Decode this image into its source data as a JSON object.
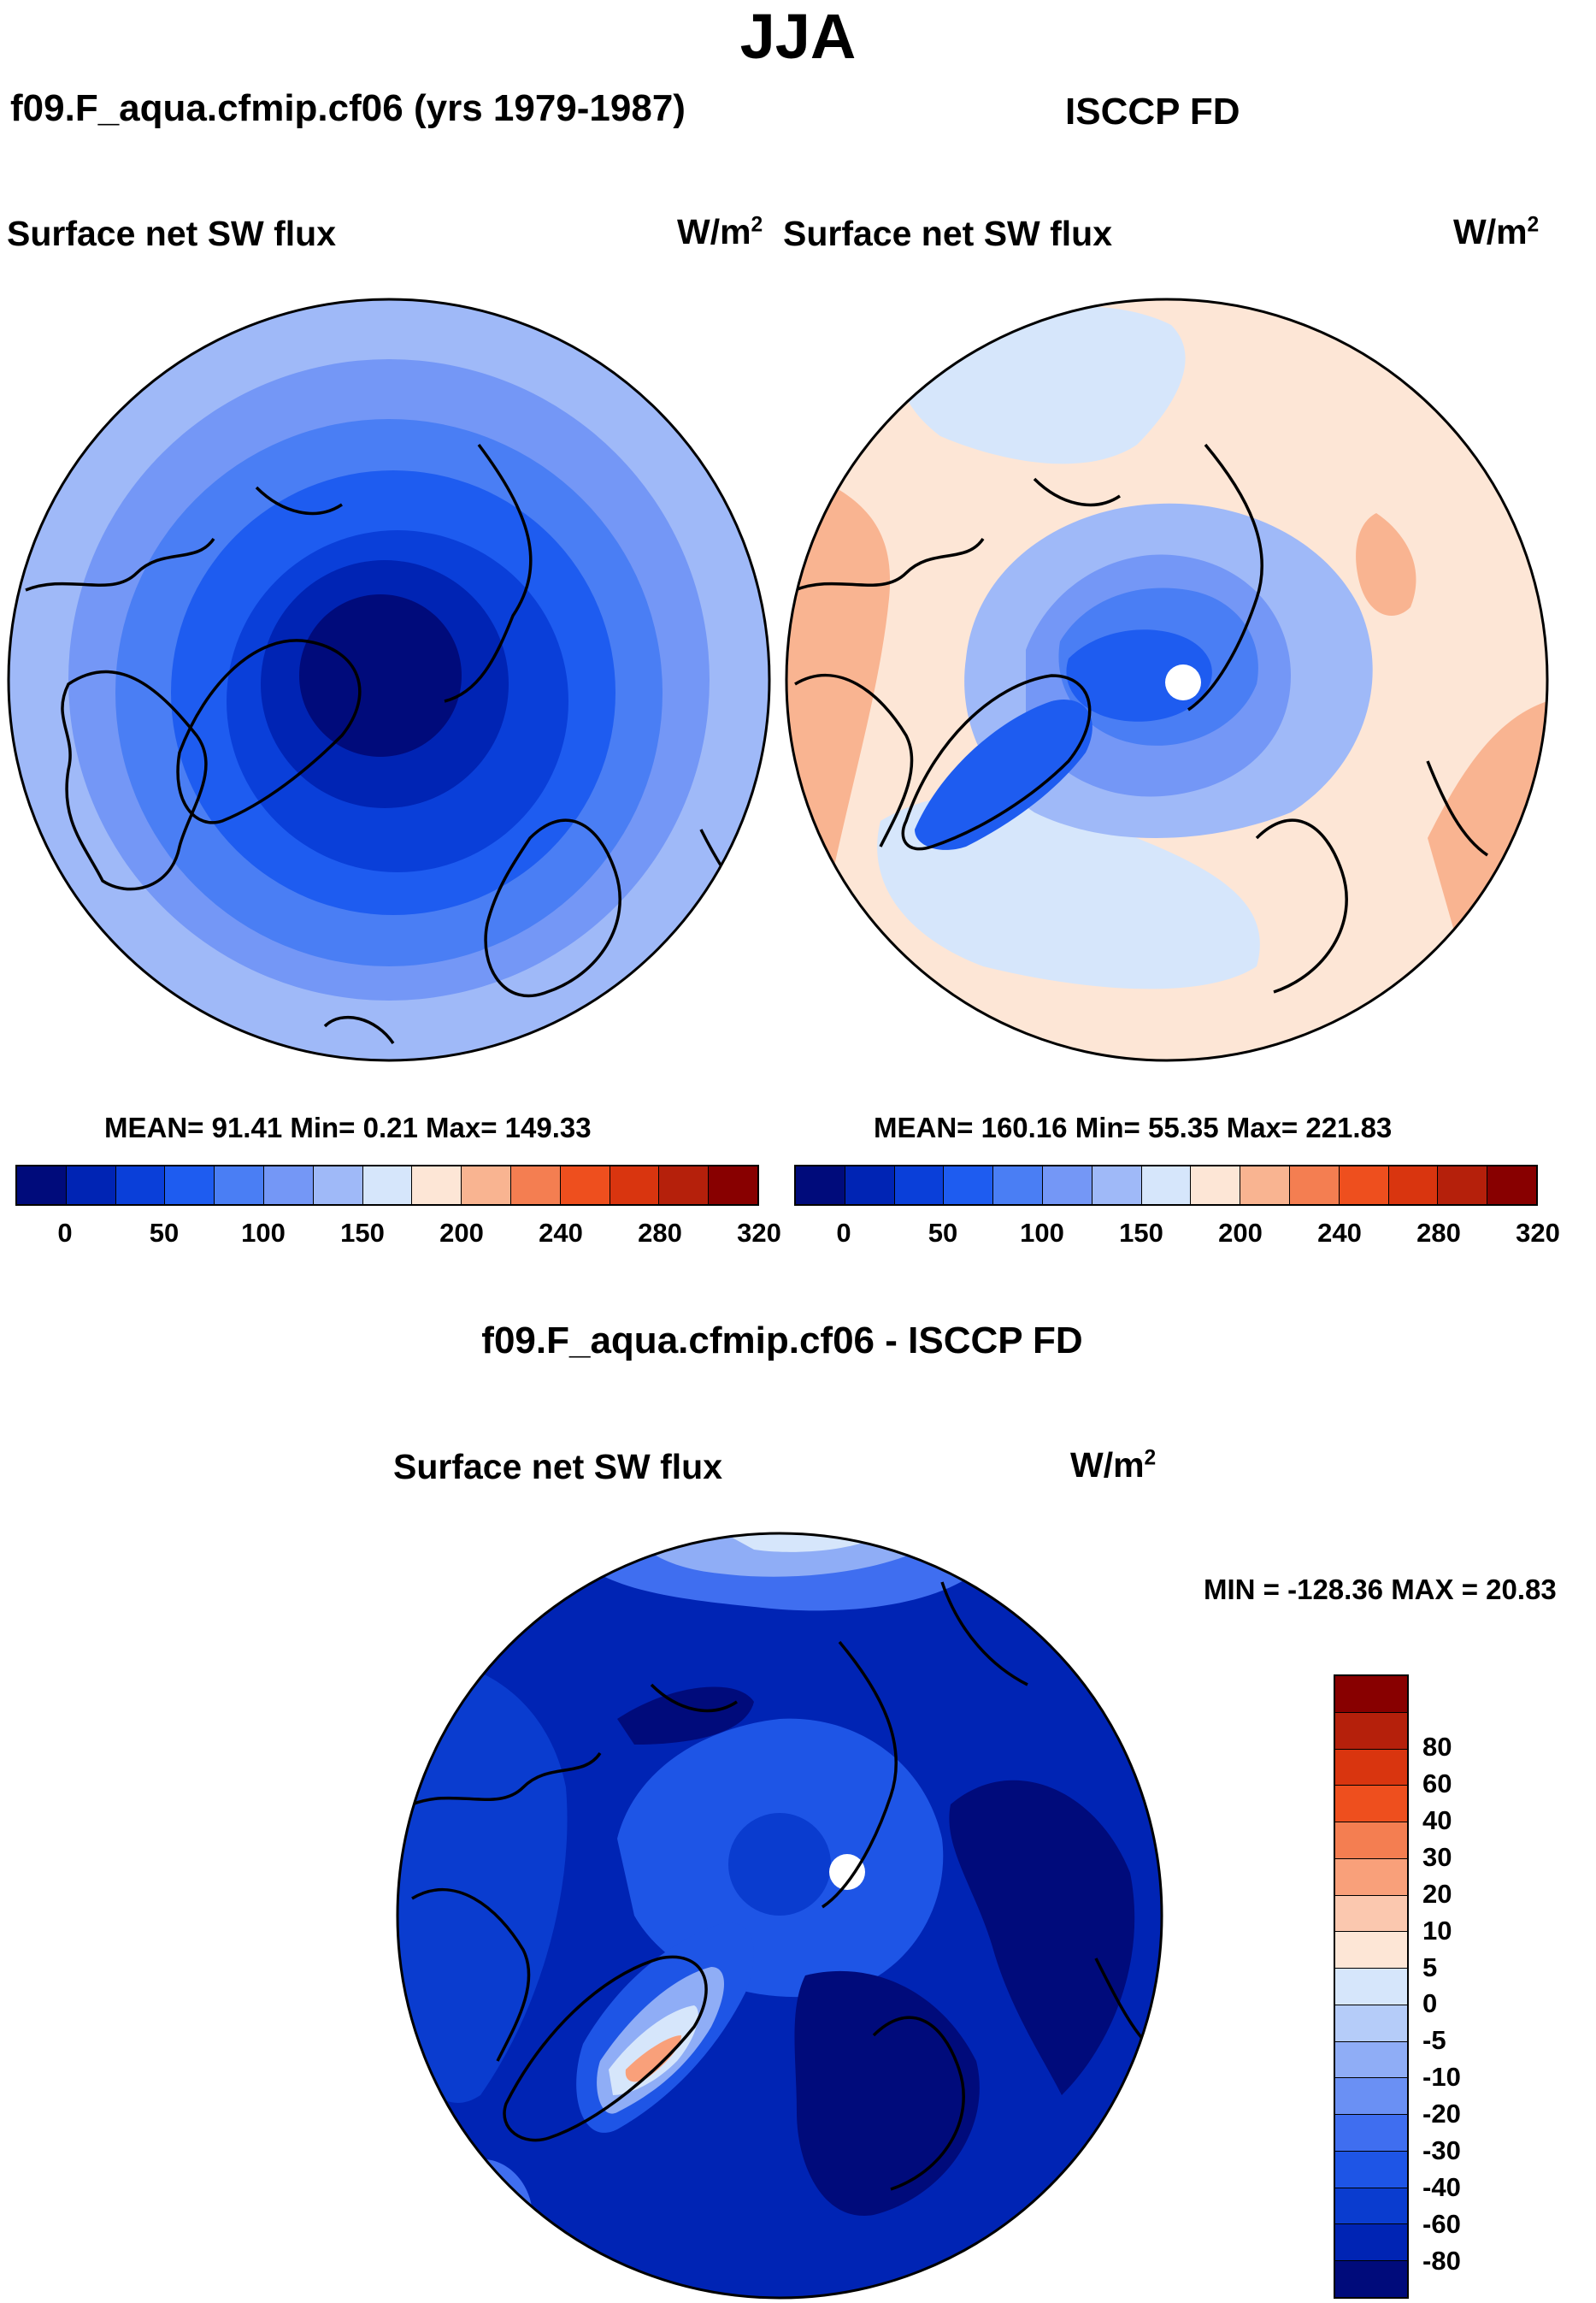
{
  "title": "JJA",
  "panels": [
    {
      "id": "model",
      "header": "f09.F_aqua.cfmip.cf06 (yrs 1979-1987)",
      "variable": "Surface net SW flux",
      "units_base": "W/m",
      "units_sup": "2",
      "stats": "MEAN=  91.41  Min=    0.21  Max= 149.33"
    },
    {
      "id": "obs",
      "header": "ISCCP FD",
      "variable": "Surface net SW flux",
      "units_base": "W/m",
      "units_sup": "2",
      "stats": "MEAN= 160.16  Min=  55.35  Max= 221.83"
    }
  ],
  "abs_colorbar": {
    "colors": [
      "#000b7b",
      "#0024b4",
      "#0a3fd9",
      "#1e5cf0",
      "#4a7ef4",
      "#7497f6",
      "#9fb9f8",
      "#d6e6fb",
      "#fde6d6",
      "#f9b491",
      "#f47e51",
      "#ee4f1e",
      "#d9350f",
      "#b5200b",
      "#880000"
    ],
    "tick_labels": [
      "0",
      "50",
      "100",
      "150",
      "200",
      "240",
      "280",
      "320"
    ]
  },
  "diff": {
    "title": "f09.F_aqua.cfmip.cf06 - ISCCP FD",
    "variable": "Surface net SW flux",
    "units_base": "W/m",
    "units_sup": "2",
    "stats": "MIN = -128.36 MAX =  20.83"
  },
  "diff_colorbar": {
    "colors": [
      "#880000",
      "#b5200b",
      "#d9350f",
      "#ee4f1e",
      "#f47e51",
      "#f9a07a",
      "#fbc8af",
      "#fde6d6",
      "#d6e6fb",
      "#b5ccf9",
      "#8fadf6",
      "#6a90f4",
      "#3f6ef0",
      "#1e55e6",
      "#0a3ccf",
      "#0024b4",
      "#000b7b"
    ],
    "labels": [
      "80",
      "60",
      "40",
      "30",
      "20",
      "10",
      "5",
      "0",
      "-5",
      "-10",
      "-20",
      "-30",
      "-40",
      "-60",
      "-80"
    ]
  }
}
